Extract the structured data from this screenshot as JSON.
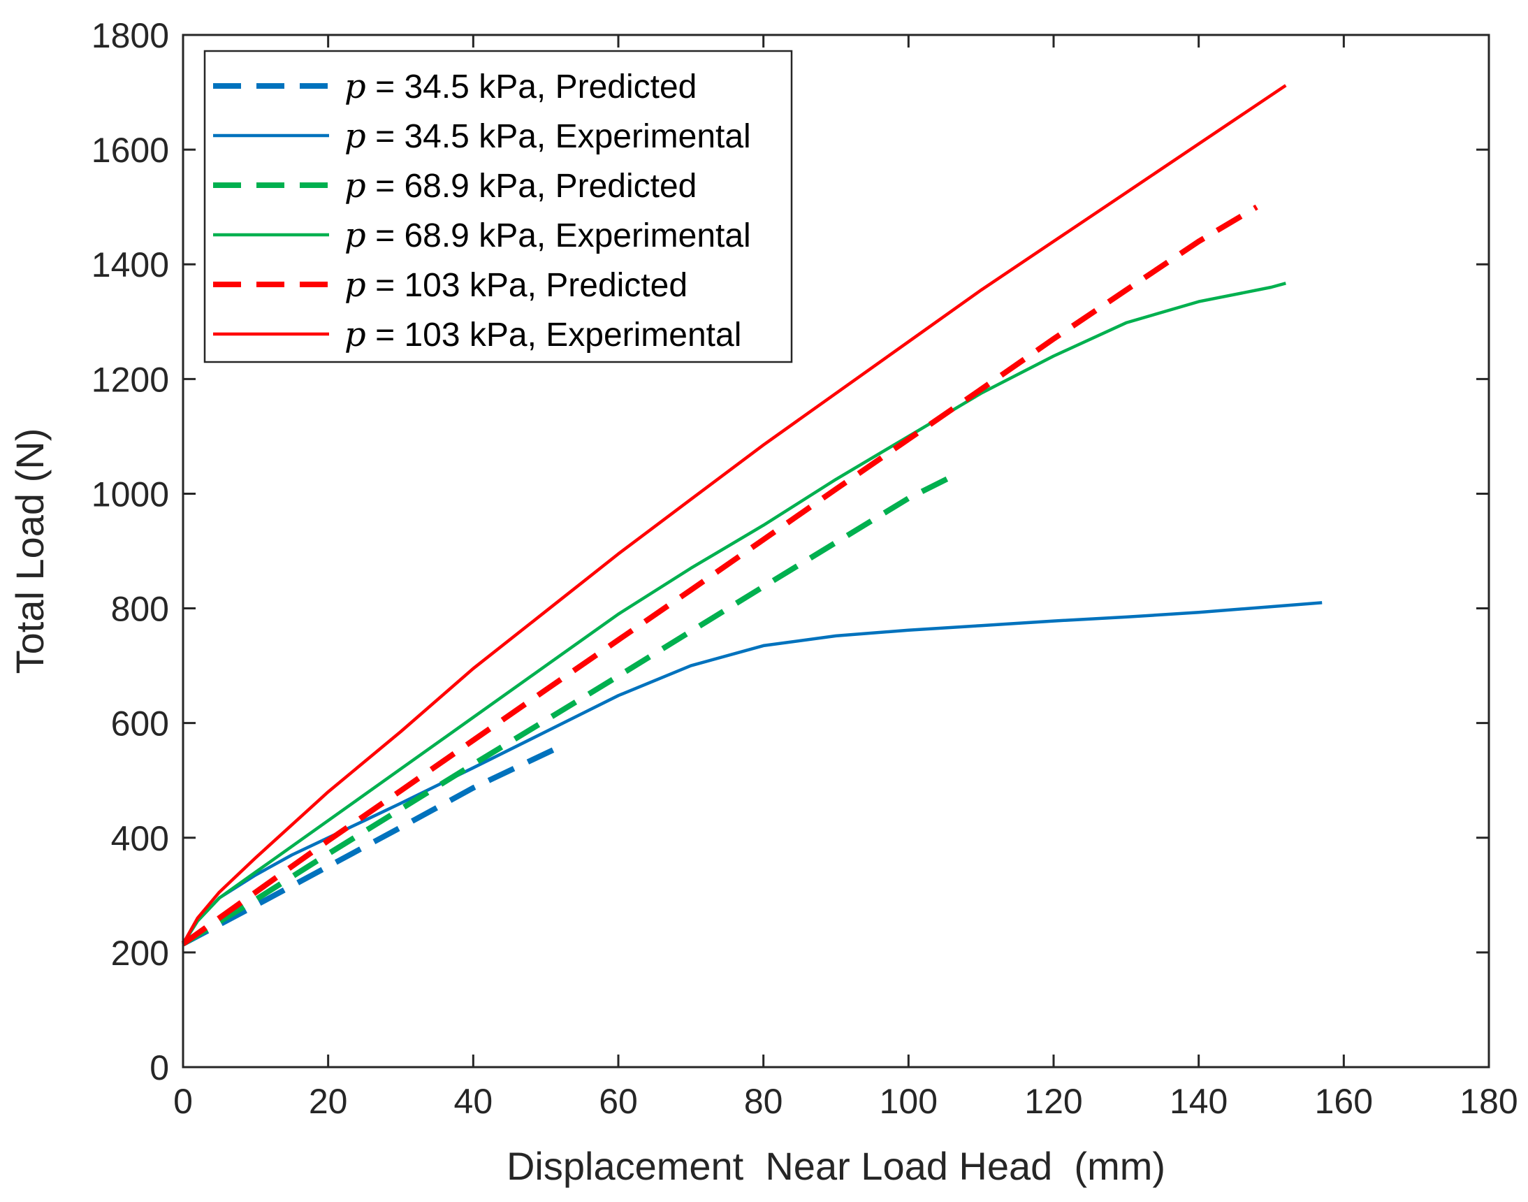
{
  "chart_data": {
    "type": "line",
    "title": "",
    "xlabel": "Displacement  Near Load Head  (mm)",
    "ylabel": "Total Load (N)",
    "xlim": [
      0,
      180
    ],
    "ylim": [
      0,
      1800
    ],
    "xticks": [
      0,
      20,
      40,
      60,
      80,
      100,
      120,
      140,
      160,
      180
    ],
    "yticks": [
      0,
      200,
      400,
      600,
      800,
      1000,
      1200,
      1400,
      1600,
      1800
    ],
    "grid": false,
    "legend_position": "top-left",
    "series": [
      {
        "name": "p = 34.5 kPa, Predicted",
        "symbol": "p",
        "label_rest": " = 34.5 kPa, Predicted",
        "color": "#0072BD",
        "style": "dashed",
        "x": [
          0,
          10,
          20,
          30,
          40,
          51
        ],
        "y": [
          215,
          282,
          350,
          418,
          487,
          553
        ]
      },
      {
        "name": "p = 34.5 kPa, Experimental",
        "symbol": "p",
        "label_rest": " = 34.5 kPa, Experimental",
        "color": "#0072BD",
        "style": "solid",
        "x": [
          0,
          2,
          5,
          10,
          15,
          20,
          25,
          30,
          40,
          50,
          60,
          70,
          80,
          90,
          100,
          110,
          120,
          130,
          140,
          150,
          157
        ],
        "y": [
          215,
          255,
          295,
          335,
          370,
          400,
          430,
          460,
          522,
          585,
          648,
          700,
          735,
          752,
          762,
          770,
          778,
          785,
          793,
          803,
          810
        ]
      },
      {
        "name": "p = 68.9 kPa, Predicted",
        "symbol": "p",
        "label_rest": " = 68.9 kPa, Predicted",
        "color": "#00B04F",
        "style": "dashed",
        "x": [
          0,
          10,
          20,
          30,
          40,
          50,
          60,
          70,
          80,
          90,
          100,
          106
        ],
        "y": [
          215,
          292,
          372,
          450,
          528,
          605,
          682,
          760,
          838,
          915,
          992,
          1030
        ]
      },
      {
        "name": "p = 68.9 kPa, Experimental",
        "symbol": "p",
        "label_rest": " = 68.9 kPa, Experimental",
        "color": "#00B04F",
        "style": "solid",
        "x": [
          0,
          2,
          5,
          10,
          20,
          30,
          40,
          50,
          60,
          70,
          80,
          90,
          100,
          110,
          120,
          130,
          140,
          150,
          152
        ],
        "y": [
          215,
          255,
          295,
          340,
          430,
          520,
          610,
          700,
          790,
          870,
          945,
          1025,
          1100,
          1175,
          1240,
          1298,
          1335,
          1360,
          1367
        ]
      },
      {
        "name": "p = 103 kPa, Predicted",
        "symbol": "p",
        "label_rest": " = 103 kPa, Predicted",
        "color": "#FF0000",
        "style": "dashed",
        "x": [
          0,
          10,
          20,
          30,
          40,
          50,
          60,
          70,
          80,
          90,
          100,
          110,
          120,
          130,
          140,
          148
        ],
        "y": [
          215,
          305,
          395,
          482,
          570,
          658,
          745,
          832,
          920,
          1008,
          1095,
          1182,
          1270,
          1355,
          1440,
          1500
        ]
      },
      {
        "name": "p = 103 kPa, Experimental",
        "symbol": "p",
        "label_rest": " = 103 kPa, Experimental",
        "color": "#FF0000",
        "style": "solid",
        "x": [
          0,
          2,
          5,
          10,
          20,
          30,
          40,
          50,
          60,
          70,
          80,
          90,
          100,
          110,
          120,
          130,
          140,
          152
        ],
        "y": [
          215,
          260,
          305,
          365,
          480,
          585,
          695,
          795,
          895,
          990,
          1085,
          1175,
          1265,
          1355,
          1440,
          1525,
          1610,
          1712
        ]
      }
    ]
  }
}
